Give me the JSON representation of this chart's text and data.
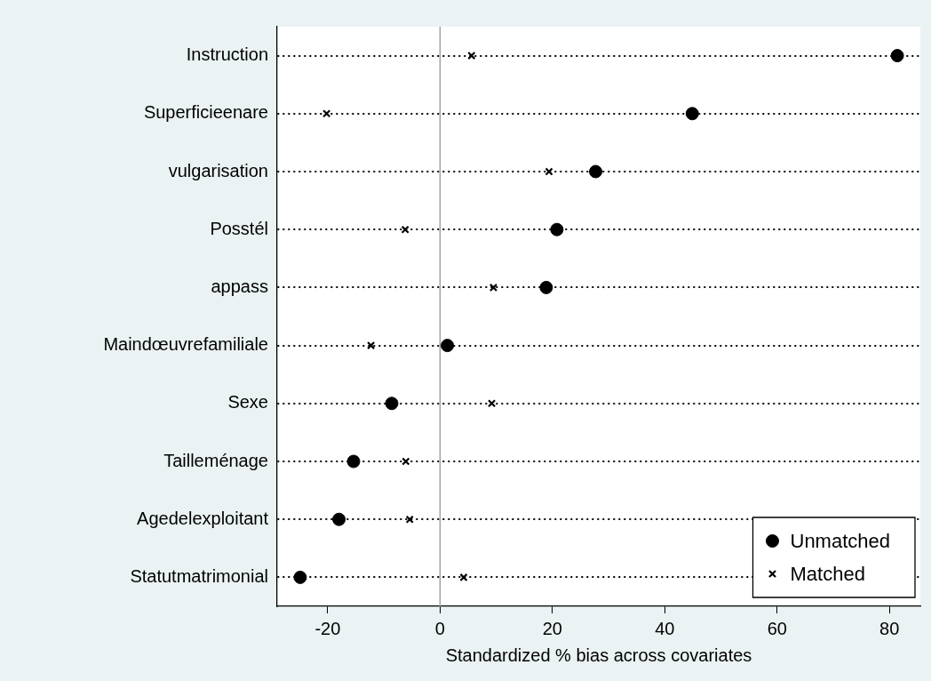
{
  "chart_data": {
    "type": "scatter",
    "orientation": "horizontal",
    "xlabel": "Standardized % bias across covariates",
    "categories": [
      "Instruction",
      "Superficieenare",
      "vulgarisation",
      "Posstél",
      "appass",
      "Maindœuvrefamiliale",
      "Sexe",
      "Tailleménage",
      "Agedelexploitant",
      "Statutmatrimonial"
    ],
    "series": [
      {
        "name": "Unmatched",
        "color": "#000000",
        "marker": "circle",
        "values": [
          81.4,
          44.9,
          27.7,
          20.8,
          18.9,
          1.3,
          -8.6,
          -15.4,
          -18.0,
          -24.9
        ]
      },
      {
        "name": "Matched",
        "color": "#000000",
        "marker": "cross",
        "values": [
          5.6,
          -20.2,
          19.4,
          -6.2,
          9.5,
          -12.3,
          9.2,
          -6.1,
          -5.4,
          4.2
        ]
      }
    ],
    "xlim": [
      -29,
      85.5
    ],
    "xticks": [
      {
        "value": -20,
        "label": "-20"
      },
      0,
      20,
      40,
      60,
      80
    ],
    "grid": "y",
    "line_style": "dotted",
    "legend": "bottom right",
    "ref_lines": [
      {
        "axis": "x",
        "value": 0,
        "color": "#a0a0a0"
      }
    ]
  }
}
